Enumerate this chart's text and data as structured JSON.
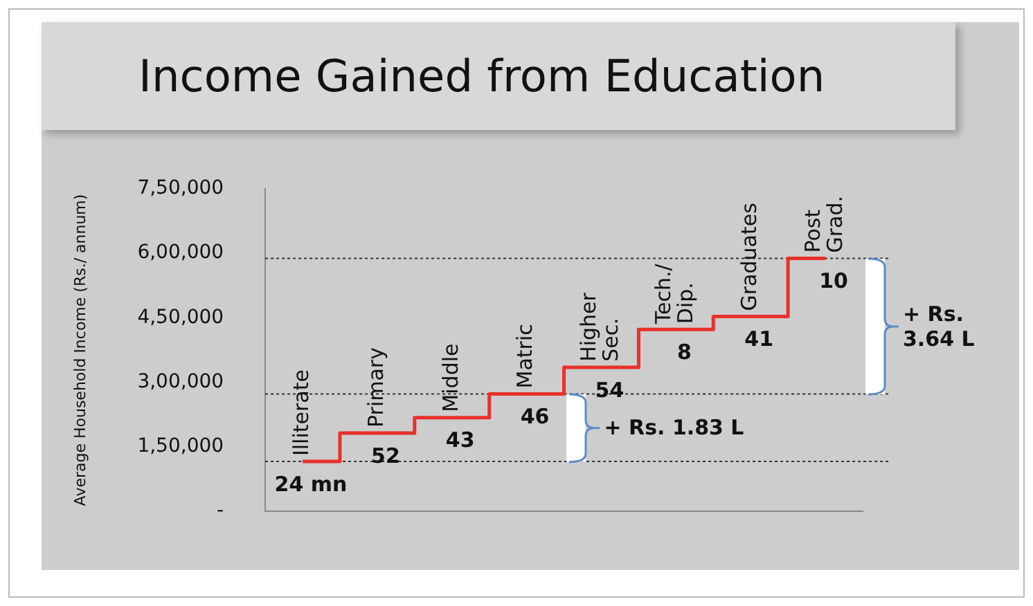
{
  "chart_data": {
    "type": "step",
    "title": "Income Gained from Education",
    "ylabel": "Average Household Income (Rs./ annum)",
    "categories": [
      "Illiterate",
      "Primary",
      "Middle",
      "Matric",
      "Higher Sec.",
      "Tech./ Dip.",
      "Graduates",
      "Post Grad."
    ],
    "values": [
      116000,
      182000,
      218000,
      273000,
      335000,
      423000,
      453000,
      588000
    ],
    "color": "#e8312a",
    "ylim": [
      0,
      750000
    ],
    "yticks": [
      {
        "value": 0,
        "label": "-"
      },
      {
        "value": 150000,
        "label": "1,50,000"
      },
      {
        "value": 300000,
        "label": "3,00,000"
      },
      {
        "value": 450000,
        "label": "4,50,000"
      },
      {
        "value": 600000,
        "label": "6,00,000"
      },
      {
        "value": 750000,
        "label": "7,50,000"
      }
    ],
    "tick_labels": "y",
    "grid": false,
    "ref_lines": [
      {
        "axis": "y",
        "value": 116000,
        "color": "#333333",
        "line_style": "dotted"
      },
      {
        "axis": "y",
        "value": 273000,
        "color": "#333333",
        "line_style": "dotted"
      },
      {
        "axis": "y",
        "value": 588000,
        "color": "#333333",
        "line_style": "dotted"
      }
    ],
    "annotations": [
      "+ Rs. 1.83 L",
      "+ Rs. 3.64 L",
      {
        "text": "24 mn",
        "x": "Illiterate",
        "y": 116000
      },
      {
        "text": "52",
        "x": "Primary",
        "y": 182000
      },
      {
        "text": "43",
        "x": "Middle",
        "y": 218000
      },
      {
        "text": "46",
        "x": "Matric",
        "y": 273000
      },
      {
        "text": "54",
        "x": "Higher Sec.",
        "y": 335000
      },
      {
        "text": "8",
        "x": "Tech./ Dip.",
        "y": 423000
      },
      {
        "text": "41",
        "x": "Graduates",
        "y": 453000
      },
      {
        "text": "10",
        "x": "Post Grad.",
        "y": 588000
      }
    ]
  }
}
